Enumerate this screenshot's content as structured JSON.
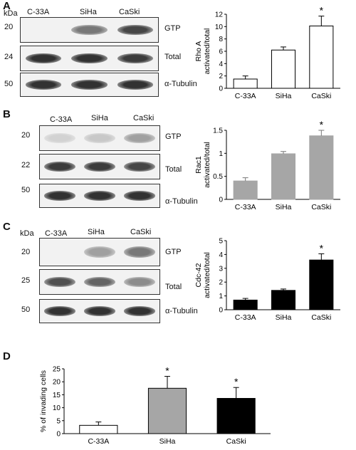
{
  "panels": [
    {
      "letter": "A",
      "kda_label": "kDa",
      "lanes": [
        "C-33A",
        "SiHa",
        "CaSki"
      ],
      "blots": [
        {
          "mw": "20",
          "label": "GTP",
          "intensity": [
            0.05,
            0.55,
            0.8
          ]
        },
        {
          "mw": "24",
          "label": "Total",
          "intensity": [
            0.9,
            0.9,
            0.85
          ]
        },
        {
          "mw": "50",
          "label": "α-Tubulin",
          "intensity": [
            0.9,
            0.9,
            0.9
          ]
        }
      ]
    },
    {
      "letter": "B",
      "kda_label": "",
      "lanes": [
        "C-33A",
        "SiHa",
        "CaSki"
      ],
      "blots": [
        {
          "mw": "20",
          "label": "GTP",
          "intensity": [
            0.1,
            0.15,
            0.35
          ]
        },
        {
          "mw": "22",
          "label": "Total",
          "intensity": [
            0.85,
            0.85,
            0.8
          ]
        },
        {
          "mw": "50",
          "label": "α-Tubulin",
          "intensity": [
            0.9,
            0.9,
            0.9
          ]
        }
      ]
    },
    {
      "letter": "C",
      "kda_label": "kDa",
      "lanes": [
        "C-33A",
        "SiHa",
        "CaSki"
      ],
      "blots": [
        {
          "mw": "20",
          "label": "GTP",
          "intensity": [
            0.05,
            0.35,
            0.55
          ]
        },
        {
          "mw": "25",
          "label": "Total",
          "intensity": [
            0.75,
            0.65,
            0.45
          ]
        },
        {
          "mw": "50",
          "label": "α-Tubulin",
          "intensity": [
            0.9,
            0.9,
            0.9
          ]
        }
      ]
    },
    {
      "letter": "D"
    }
  ],
  "chart_data": [
    {
      "type": "bar",
      "ylabel_lines": [
        "Rho A",
        "activated/total"
      ],
      "categories": [
        "C-33A",
        "SiHa",
        "CaSki"
      ],
      "values": [
        1.5,
        6.2,
        10.1
      ],
      "errors": [
        0.5,
        0.5,
        1.6
      ],
      "significance": [
        "",
        "",
        "*"
      ],
      "ylim": [
        0,
        12
      ],
      "yticks": [
        0,
        2,
        4,
        6,
        8,
        10,
        12
      ],
      "fill": "#ffffff",
      "stroke": "#000000"
    },
    {
      "type": "bar",
      "ylabel_lines": [
        "Rac1",
        "activated/total"
      ],
      "categories": [
        "C-33A",
        "SiHa",
        "CaSki"
      ],
      "values": [
        0.4,
        0.99,
        1.38
      ],
      "errors": [
        0.07,
        0.05,
        0.12
      ],
      "significance": [
        "",
        "",
        "*"
      ],
      "ylim": [
        0,
        1.5
      ],
      "yticks": [
        0,
        0.5,
        1,
        1.5
      ],
      "fill": "#a6a6a6",
      "stroke": "#a6a6a6"
    },
    {
      "type": "bar",
      "ylabel_lines": [
        "Cdc-42",
        "activated/total"
      ],
      "categories": [
        "C-33A",
        "SiHa",
        "CaSki"
      ],
      "values": [
        0.7,
        1.4,
        3.6
      ],
      "errors": [
        0.12,
        0.1,
        0.45
      ],
      "significance": [
        "",
        "",
        "*"
      ],
      "ylim": [
        0,
        5
      ],
      "yticks": [
        0,
        1,
        2,
        3,
        4,
        5
      ],
      "fill": "#000000",
      "stroke": "#000000"
    },
    {
      "type": "bar",
      "ylabel_lines": [
        "% of invading cells"
      ],
      "categories": [
        "C-33A",
        "SiHa",
        "CaSki"
      ],
      "values": [
        3.2,
        17.5,
        13.6
      ],
      "errors": [
        1.3,
        4.6,
        4.2
      ],
      "significance": [
        "",
        "*",
        "*"
      ],
      "ylim": [
        0,
        25
      ],
      "yticks": [
        0,
        5,
        10,
        15,
        20,
        25
      ],
      "fills": [
        "#ffffff",
        "#a6a6a6",
        "#000000"
      ],
      "stroke": "#000000"
    }
  ]
}
